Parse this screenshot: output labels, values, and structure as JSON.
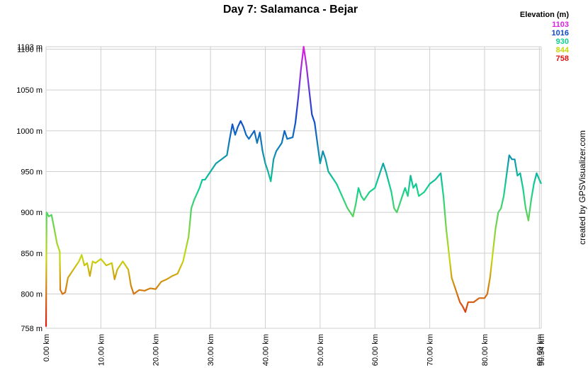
{
  "chart_data": {
    "type": "line",
    "title": "Day 7: Salamanca - Bejar",
    "credit": "created by GPSVisualizer.com",
    "color_scale": {
      "title": "Elevation (m)",
      "stops": [
        {
          "value": 1103,
          "color": "#e020e0"
        },
        {
          "value": 1016,
          "color": "#1048d0"
        },
        {
          "value": 930,
          "color": "#10d090"
        },
        {
          "value": 844,
          "color": "#c8d810"
        },
        {
          "value": 758,
          "color": "#e01010"
        }
      ]
    },
    "xlim": [
      0,
      90.34
    ],
    "ylim": [
      758,
      1103
    ],
    "grid": true,
    "xticks": [
      {
        "value": 0,
        "label": "0.00 km"
      },
      {
        "value": 10,
        "label": "10.00 km"
      },
      {
        "value": 20,
        "label": "20.00 km"
      },
      {
        "value": 30,
        "label": "30.00 km"
      },
      {
        "value": 40,
        "label": "40.00 km"
      },
      {
        "value": 50,
        "label": "50.00 km"
      },
      {
        "value": 60,
        "label": "60.00 km"
      },
      {
        "value": 70,
        "label": "70.00 km"
      },
      {
        "value": 80,
        "label": "80.00 km"
      },
      {
        "value": 90,
        "label": "90.00 km"
      },
      {
        "value": 90.34,
        "label": "90.34 km"
      }
    ],
    "yticks": [
      {
        "value": 758,
        "label": "758 m"
      },
      {
        "value": 800,
        "label": "800 m"
      },
      {
        "value": 850,
        "label": "850 m"
      },
      {
        "value": 900,
        "label": "900 m"
      },
      {
        "value": 950,
        "label": "950 m"
      },
      {
        "value": 1000,
        "label": "1000 m"
      },
      {
        "value": 1050,
        "label": "1050 m"
      },
      {
        "value": 1100,
        "label": "1100 m"
      },
      {
        "value": 1103,
        "label": "1103 m"
      }
    ],
    "x": [
      0,
      0.1,
      0.5,
      1,
      1.5,
      2,
      2.5,
      2.6,
      3,
      3.5,
      4,
      5,
      6,
      6.5,
      7,
      7.5,
      8,
      8.5,
      9,
      10,
      11,
      12,
      12.5,
      13,
      14,
      15,
      15.5,
      16,
      17,
      18,
      19,
      20,
      21,
      22,
      23,
      24,
      25,
      25.5,
      26,
      26.5,
      27,
      28,
      28.5,
      29,
      30,
      31,
      32,
      33,
      33.5,
      34,
      34.5,
      35,
      35.5,
      36,
      36.5,
      37,
      38,
      38.5,
      39,
      39.5,
      40,
      40.5,
      41,
      41.5,
      42,
      43,
      43.5,
      44,
      45,
      45.5,
      46,
      46.5,
      47,
      47.5,
      48,
      48.5,
      49,
      49.5,
      50,
      50.5,
      51,
      51.5,
      52,
      53,
      54,
      55,
      56,
      56.5,
      57,
      57.5,
      58,
      59,
      60,
      61,
      61.5,
      62,
      63,
      63.5,
      64,
      65,
      65.5,
      66,
      66.5,
      67,
      67.5,
      68,
      69,
      69.5,
      70,
      71,
      72,
      72.5,
      73,
      73.5,
      74,
      75,
      75.5,
      76,
      76.5,
      77,
      78,
      79,
      80,
      80.5,
      81,
      81.5,
      82,
      82.5,
      83,
      83.5,
      84,
      84.5,
      85,
      85.5,
      86,
      86.5,
      87,
      87.5,
      88,
      88.5,
      89,
      89.5,
      90,
      90.34
    ],
    "values": [
      760,
      900,
      895,
      897,
      880,
      862,
      852,
      805,
      800,
      802,
      820,
      830,
      840,
      848,
      835,
      838,
      822,
      840,
      838,
      843,
      835,
      838,
      818,
      830,
      840,
      830,
      810,
      800,
      805,
      804,
      807,
      806,
      815,
      818,
      822,
      825,
      840,
      855,
      870,
      905,
      915,
      930,
      940,
      940,
      950,
      960,
      965,
      970,
      990,
      1008,
      995,
      1005,
      1012,
      1005,
      995,
      990,
      1000,
      985,
      998,
      975,
      960,
      950,
      938,
      965,
      975,
      985,
      1000,
      990,
      992,
      1010,
      1040,
      1075,
      1103,
      1080,
      1050,
      1020,
      1010,
      985,
      960,
      975,
      965,
      950,
      945,
      935,
      920,
      905,
      895,
      910,
      930,
      920,
      915,
      925,
      930,
      950,
      960,
      950,
      925,
      905,
      900,
      920,
      930,
      920,
      945,
      930,
      935,
      920,
      925,
      930,
      935,
      940,
      948,
      920,
      880,
      850,
      820,
      800,
      790,
      785,
      778,
      790,
      790,
      795,
      795,
      800,
      820,
      850,
      880,
      900,
      905,
      920,
      945,
      970,
      965,
      965,
      945,
      948,
      930,
      905,
      890,
      915,
      935,
      948,
      940,
      935
    ]
  }
}
